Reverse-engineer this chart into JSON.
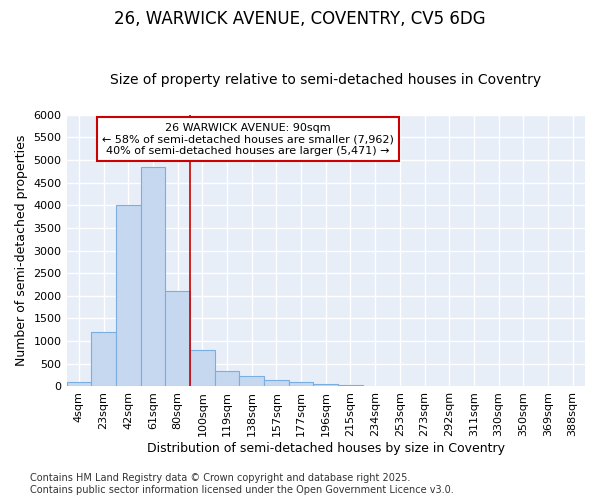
{
  "title_line1": "26, WARWICK AVENUE, COVENTRY, CV5 6DG",
  "title_line2": "Size of property relative to semi-detached houses in Coventry",
  "xlabel": "Distribution of semi-detached houses by size in Coventry",
  "ylabel": "Number of semi-detached properties",
  "categories": [
    "4sqm",
    "23sqm",
    "42sqm",
    "61sqm",
    "80sqm",
    "100sqm",
    "119sqm",
    "138sqm",
    "157sqm",
    "177sqm",
    "196sqm",
    "215sqm",
    "234sqm",
    "253sqm",
    "273sqm",
    "292sqm",
    "311sqm",
    "330sqm",
    "350sqm",
    "369sqm",
    "388sqm"
  ],
  "values": [
    100,
    1200,
    4000,
    4850,
    2100,
    800,
    350,
    220,
    150,
    100,
    50,
    30,
    0,
    0,
    0,
    0,
    0,
    0,
    0,
    0,
    0
  ],
  "bar_color": "#c5d8f0",
  "bar_edge_color": "#7aade0",
  "annotation_title": "26 WARWICK AVENUE: 90sqm",
  "annotation_line2": "← 58% of semi-detached houses are smaller (7,962)",
  "annotation_line3": "40% of semi-detached houses are larger (5,471) →",
  "annotation_box_facecolor": "#ffffff",
  "annotation_box_edgecolor": "#cc0000",
  "vline_color": "#cc0000",
  "vline_x": 4.5,
  "ylim": [
    0,
    6000
  ],
  "yticks": [
    0,
    500,
    1000,
    1500,
    2000,
    2500,
    3000,
    3500,
    4000,
    4500,
    5000,
    5500,
    6000
  ],
  "fig_background": "#ffffff",
  "plot_background": "#e8eef8",
  "grid_color": "#ffffff",
  "footer_line1": "Contains HM Land Registry data © Crown copyright and database right 2025.",
  "footer_line2": "Contains public sector information licensed under the Open Government Licence v3.0.",
  "title_fontsize": 12,
  "subtitle_fontsize": 10,
  "axis_label_fontsize": 9,
  "tick_fontsize": 8,
  "annotation_fontsize": 8,
  "footer_fontsize": 7
}
